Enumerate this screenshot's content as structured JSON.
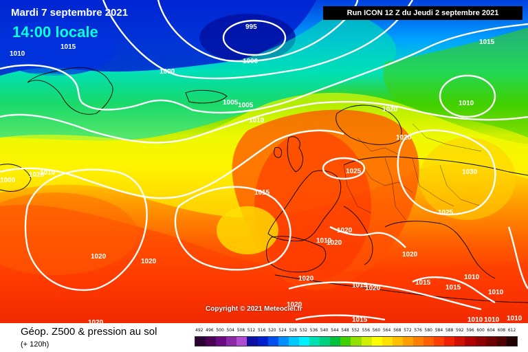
{
  "header": {
    "date": "Mardi 7 septembre 2021",
    "local_time": "14:00 locale",
    "run_info": "Run ICON 12 Z du Jeudi 2 septembre 2021"
  },
  "copyright": "Copyright © 2021 Meteociel.fr",
  "footer": {
    "title": "Géop. Z500 & pression au sol",
    "subtitle": "(+ 120h)"
  },
  "legend": {
    "labels": [
      "492",
      "496",
      "500",
      "504",
      "508",
      "512",
      "516",
      "520",
      "524",
      "528",
      "532",
      "536",
      "540",
      "544",
      "548",
      "552",
      "556",
      "560",
      "564",
      "568",
      "572",
      "576",
      "580",
      "584",
      "588",
      "592",
      "596",
      "600",
      "604",
      "608",
      "612"
    ],
    "colors": [
      "#2b0033",
      "#4b0055",
      "#6a0a80",
      "#8a2aa8",
      "#b04cd0",
      "#1010a0",
      "#0020d0",
      "#0050f0",
      "#0090ff",
      "#00c8ff",
      "#00f0ff",
      "#00e0b0",
      "#00d080",
      "#00c040",
      "#40d000",
      "#90e000",
      "#d0f000",
      "#ffff00",
      "#ffe000",
      "#ffc000",
      "#ffa000",
      "#ff8000",
      "#ff6000",
      "#ff4000",
      "#f02000",
      "#d01000",
      "#b00000",
      "#900000",
      "#700000",
      "#500000",
      "#200000"
    ]
  },
  "isobars": [
    {
      "label": "995"
    },
    {
      "label": "1000"
    },
    {
      "label": "1000"
    },
    {
      "label": "1015"
    },
    {
      "label": "1010"
    },
    {
      "label": "1015"
    },
    {
      "label": "1005"
    },
    {
      "label": "1005"
    },
    {
      "label": "1010"
    },
    {
      "label": "1020"
    },
    {
      "label": "1020"
    },
    {
      "label": "1010"
    },
    {
      "label": "1030"
    },
    {
      "label": "1025"
    },
    {
      "label": "1025"
    },
    {
      "label": "1015"
    },
    {
      "label": "1020"
    },
    {
      "label": "1020"
    },
    {
      "label": "1010"
    },
    {
      "label": "1020"
    },
    {
      "label": "1020"
    },
    {
      "label": "1020"
    },
    {
      "label": "1020"
    },
    {
      "label": "1010"
    },
    {
      "label": "1000"
    },
    {
      "label": "1020"
    },
    {
      "label": "1015"
    },
    {
      "label": "1015"
    },
    {
      "label": "1010"
    },
    {
      "label": "1010"
    },
    {
      "label": "1020"
    },
    {
      "label": "1015"
    },
    {
      "label": "1010"
    },
    {
      "label": "1010"
    },
    {
      "label": "1010"
    },
    {
      "label": "1020"
    },
    {
      "label": "1015"
    },
    {
      "label": "1020"
    }
  ]
}
